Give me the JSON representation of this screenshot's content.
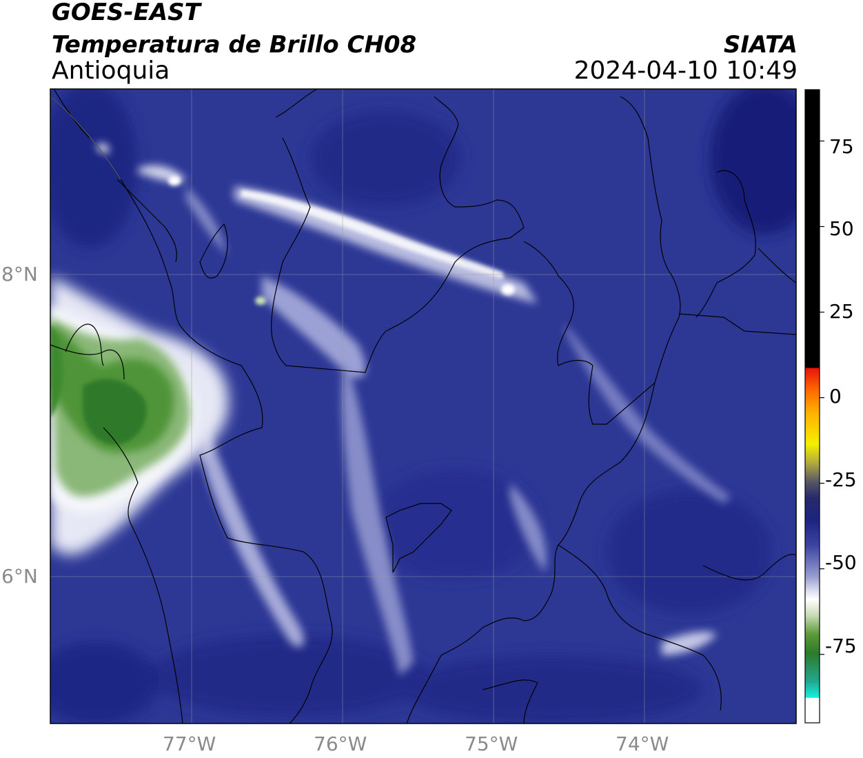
{
  "header": {
    "satellite": "GOES-EAST",
    "product": "Temperatura de Brillo CH08",
    "region": "Antioquia",
    "source": "SIATA",
    "datetime": "2024-04-10 10:49"
  },
  "map": {
    "lon_range": [
      -77.95,
      -73.0
    ],
    "lat_range": [
      5.05,
      9.25
    ],
    "lon_ticks": [
      {
        "value": -77,
        "label": "77°W"
      },
      {
        "value": -76,
        "label": "76°W"
      },
      {
        "value": -75,
        "label": "75°W"
      },
      {
        "value": -74,
        "label": "74°W"
      }
    ],
    "lat_ticks": [
      {
        "value": 8,
        "label": "8°N"
      },
      {
        "value": 6,
        "label": "6°N"
      }
    ],
    "gridlines": true,
    "background_color": "#2b3591"
  },
  "colorbar": {
    "min": -95,
    "max": 90,
    "ticks": [
      {
        "value": 75,
        "label": "75"
      },
      {
        "value": 50,
        "label": "50"
      },
      {
        "value": 25,
        "label": "25"
      },
      {
        "value": 0,
        "label": "0"
      },
      {
        "value": -25,
        "label": "-25"
      },
      {
        "value": -50,
        "label": "-50"
      },
      {
        "value": -75,
        "label": "-75"
      }
    ],
    "colors": {
      "warm_top": "#000000",
      "red": "#e8140a",
      "orange": "#ff8a00",
      "yellow": "#f4f000",
      "dark": "#262a6a",
      "navy": "#1c2480",
      "blue": "#3b45a0",
      "lavender": "#b4b8dc",
      "white": "#ffffff",
      "green": "#3f8a2a",
      "teal": "#22c4a0",
      "cyan": "#13f0e2"
    }
  }
}
